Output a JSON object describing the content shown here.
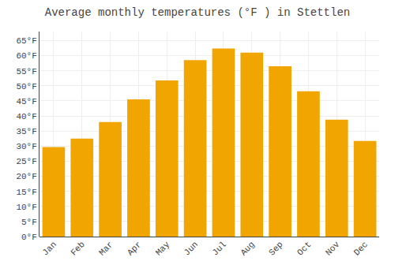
{
  "chart_data": {
    "type": "bar",
    "title": "Average monthly temperatures (°F ) in Stettlen",
    "categories": [
      "Jan",
      "Feb",
      "Mar",
      "Apr",
      "May",
      "Jun",
      "Jul",
      "Aug",
      "Sep",
      "Oct",
      "Nov",
      "Dec"
    ],
    "values": [
      29.7,
      32.5,
      38.0,
      45.5,
      51.8,
      58.5,
      62.4,
      61.0,
      56.5,
      48.2,
      38.8,
      31.7
    ],
    "color": "#F0A500",
    "ylim": [
      0,
      68
    ],
    "yticks": [
      {
        "value": 0,
        "label": "0°F"
      },
      {
        "value": 5,
        "label": "5°F"
      },
      {
        "value": 10,
        "label": "10°F"
      },
      {
        "value": 15,
        "label": "15°F"
      },
      {
        "value": 20,
        "label": "20°F"
      },
      {
        "value": 25,
        "label": "25°F"
      },
      {
        "value": 30,
        "label": "30°F"
      },
      {
        "value": 35,
        "label": "35°F"
      },
      {
        "value": 40,
        "label": "40°F"
      },
      {
        "value": 45,
        "label": "45°F"
      },
      {
        "value": 50,
        "label": "50°F"
      },
      {
        "value": 55,
        "label": "55°F"
      },
      {
        "value": 60,
        "label": "60°F"
      },
      {
        "value": 65,
        "label": "65°F"
      }
    ],
    "grid": true
  }
}
